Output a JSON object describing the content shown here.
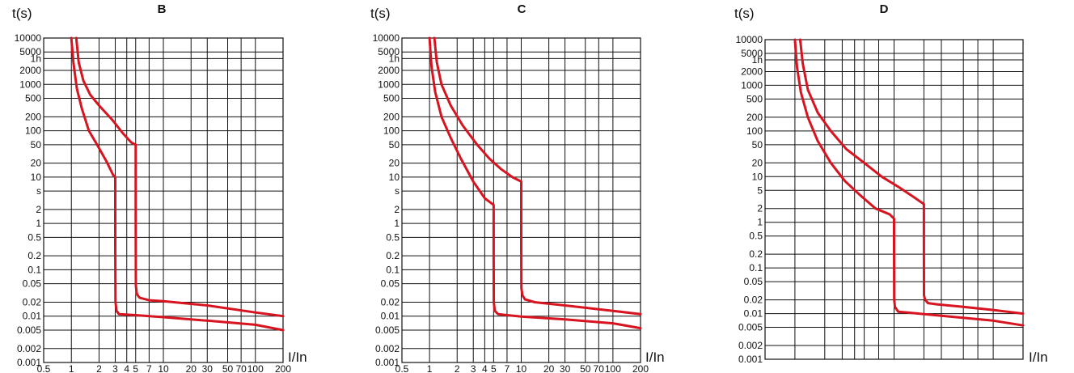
{
  "chart_data": [
    {
      "type": "line",
      "title": "B",
      "ylabel": "t(s)",
      "xlabel": "I/In",
      "x_scale": "log",
      "y_scale": "log",
      "xlim": [
        0.5,
        200
      ],
      "ylim": [
        0.001,
        10000
      ],
      "grid": true,
      "x_ticks": [
        "0.5",
        "1",
        "2",
        "3",
        "4",
        "5",
        "7",
        "10",
        "20",
        "30",
        "50",
        "70",
        "100",
        "200"
      ],
      "y_ticks": [
        "10000",
        "5000",
        "1h",
        "2000",
        "1000",
        "500",
        "200",
        "100",
        "50",
        "20",
        "10",
        "s",
        "2",
        "1",
        "0.5",
        "0.2",
        "0.1",
        "0.05",
        "0.02",
        "0.01",
        "0.005",
        "0.002",
        "0.001"
      ],
      "series": [
        {
          "color": "#d7141f",
          "x": [
            1.0,
            1.05,
            1.15,
            1.3,
            1.55,
            1.9,
            2.4,
            2.85,
            3.0,
            3.0,
            3.02,
            3.1,
            3.3,
            5,
            10,
            30,
            100,
            200
          ],
          "y": [
            10000,
            3000,
            800,
            300,
            100,
            50,
            22,
            11,
            10,
            0.3,
            0.02,
            0.013,
            0.011,
            0.0105,
            0.0095,
            0.008,
            0.0065,
            0.005
          ]
        },
        {
          "color": "#d7141f",
          "x": [
            1.13,
            1.2,
            1.35,
            1.6,
            2.0,
            2.8,
            3.6,
            4.5,
            5.0,
            5.0,
            5.02,
            5.15,
            5.5,
            7,
            10,
            30,
            100,
            200
          ],
          "y": [
            10000,
            3000,
            1200,
            600,
            350,
            170,
            90,
            55,
            50,
            1,
            0.045,
            0.03,
            0.025,
            0.022,
            0.021,
            0.017,
            0.012,
            0.01
          ]
        }
      ]
    },
    {
      "type": "line",
      "title": "C",
      "ylabel": "t(s)",
      "xlabel": "I/In",
      "x_scale": "log",
      "y_scale": "log",
      "xlim": [
        0.5,
        200
      ],
      "ylim": [
        0.001,
        10000
      ],
      "grid": true,
      "x_ticks": [
        "0.5",
        "1",
        "2",
        "3",
        "4",
        "5",
        "7",
        "10",
        "20",
        "30",
        "50",
        "70",
        "100",
        "200"
      ],
      "y_ticks": [
        "10000",
        "5000",
        "1h",
        "2000",
        "1000",
        "500",
        "200",
        "100",
        "50",
        "20",
        "10",
        "s",
        "2",
        "1",
        "0.5",
        "0.2",
        "0.1",
        "0.05",
        "0.02",
        "0.01",
        "0.005",
        "0.002",
        "0.001"
      ],
      "series": [
        {
          "color": "#d7141f",
          "x": [
            1.0,
            1.05,
            1.15,
            1.35,
            1.7,
            2.2,
            3.0,
            4.0,
            5.0,
            5.0,
            5.02,
            5.15,
            5.6,
            7,
            10,
            30,
            100,
            200
          ],
          "y": [
            10000,
            2500,
            700,
            200,
            70,
            25,
            8,
            3.5,
            2.5,
            0.2,
            0.02,
            0.013,
            0.011,
            0.0105,
            0.0098,
            0.0085,
            0.007,
            0.0055
          ]
        },
        {
          "color": "#d7141f",
          "x": [
            1.13,
            1.2,
            1.35,
            1.7,
            2.3,
            3.3,
            4.5,
            6.0,
            8.0,
            10.0,
            10.0,
            10.05,
            10.3,
            11,
            14,
            30,
            100,
            200
          ],
          "y": [
            10000,
            3000,
            1000,
            350,
            130,
            50,
            25,
            15,
            10,
            8,
            0.3,
            0.04,
            0.028,
            0.023,
            0.02,
            0.017,
            0.013,
            0.011
          ]
        }
      ]
    },
    {
      "type": "line",
      "title": "D",
      "ylabel": "t(s)",
      "xlabel": "I/In",
      "x_scale": "log",
      "y_scale": "log",
      "xlim": [
        0.5,
        200
      ],
      "ylim": [
        0.001,
        10000
      ],
      "grid": true,
      "x_ticks": [
        "0.5",
        "1",
        "2",
        "3",
        "4",
        "5",
        "7",
        "10",
        "20",
        "30",
        "50",
        "70",
        "100",
        "200"
      ],
      "y_ticks": [
        "10000",
        "5000",
        "1h",
        "2000",
        "1000",
        "500",
        "200",
        "100",
        "50",
        "20",
        "10",
        "5",
        "2",
        "1",
        "0.5",
        "0.2",
        "0.1",
        "0.05",
        "0.02",
        "0.01",
        "0.005",
        "0.002",
        "0.001"
      ],
      "series": [
        {
          "color": "#d7141f",
          "x": [
            1.0,
            1.05,
            1.15,
            1.35,
            1.7,
            2.3,
            3.2,
            4.5,
            6.5,
            9.0,
            10.0,
            10.0,
            10.03,
            10.2,
            11,
            14,
            30,
            100,
            200
          ],
          "y": [
            10000,
            2500,
            700,
            200,
            60,
            20,
            8,
            4,
            2,
            1.5,
            1.2,
            0.3,
            0.02,
            0.014,
            0.011,
            0.0105,
            0.009,
            0.007,
            0.0055
          ]
        },
        {
          "color": "#d7141f",
          "x": [
            1.13,
            1.2,
            1.35,
            1.7,
            2.3,
            3.3,
            5.0,
            7.5,
            11,
            16,
            20,
            20,
            20.05,
            20.6,
            22,
            27,
            50,
            100,
            200
          ],
          "y": [
            10000,
            3000,
            800,
            250,
            100,
            40,
            20,
            10,
            6,
            3.5,
            2.5,
            0.3,
            0.025,
            0.02,
            0.017,
            0.016,
            0.014,
            0.012,
            0.01
          ]
        }
      ]
    }
  ]
}
